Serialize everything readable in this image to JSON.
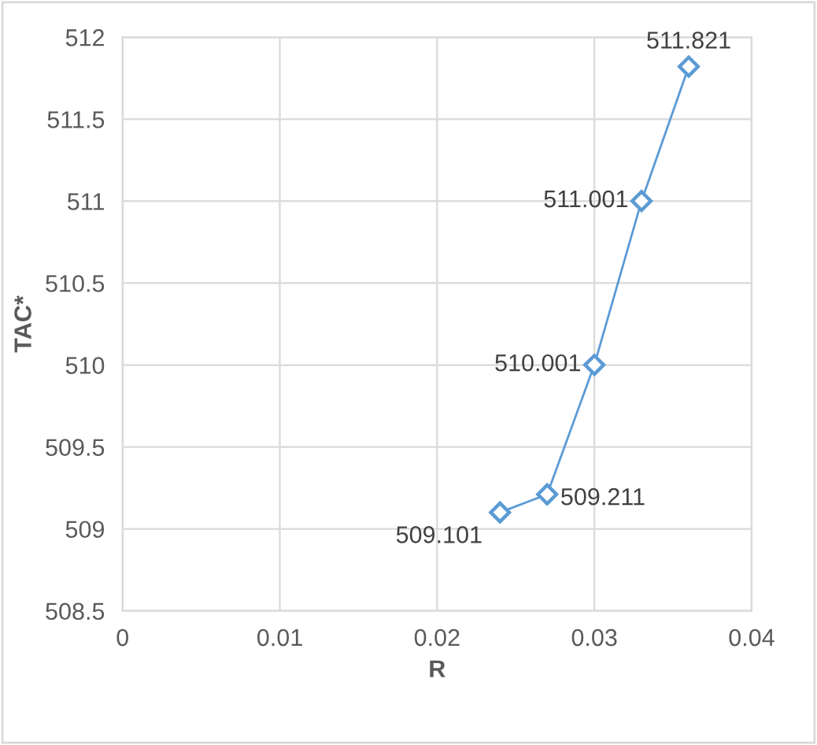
{
  "chart_data": {
    "type": "line",
    "xlabel": "R",
    "ylabel": "TAC*",
    "series": [
      {
        "color": "#5b9bd5",
        "x": [
          0.024,
          0.027,
          0.03,
          0.033,
          0.036
        ],
        "values": [
          509.101,
          509.211,
          510.001,
          511.001,
          511.821
        ]
      }
    ],
    "xlim": [
      0,
      0.04
    ],
    "xticks": [
      0,
      0.01,
      0.02,
      0.03,
      0.04
    ],
    "ylim": [
      508.5,
      512
    ],
    "yticks": [
      508.5,
      509,
      509.5,
      510,
      510.5,
      511,
      511.5,
      512
    ],
    "grid": true,
    "marker": "diamond",
    "line_style": "solid",
    "data_labels": true
  }
}
